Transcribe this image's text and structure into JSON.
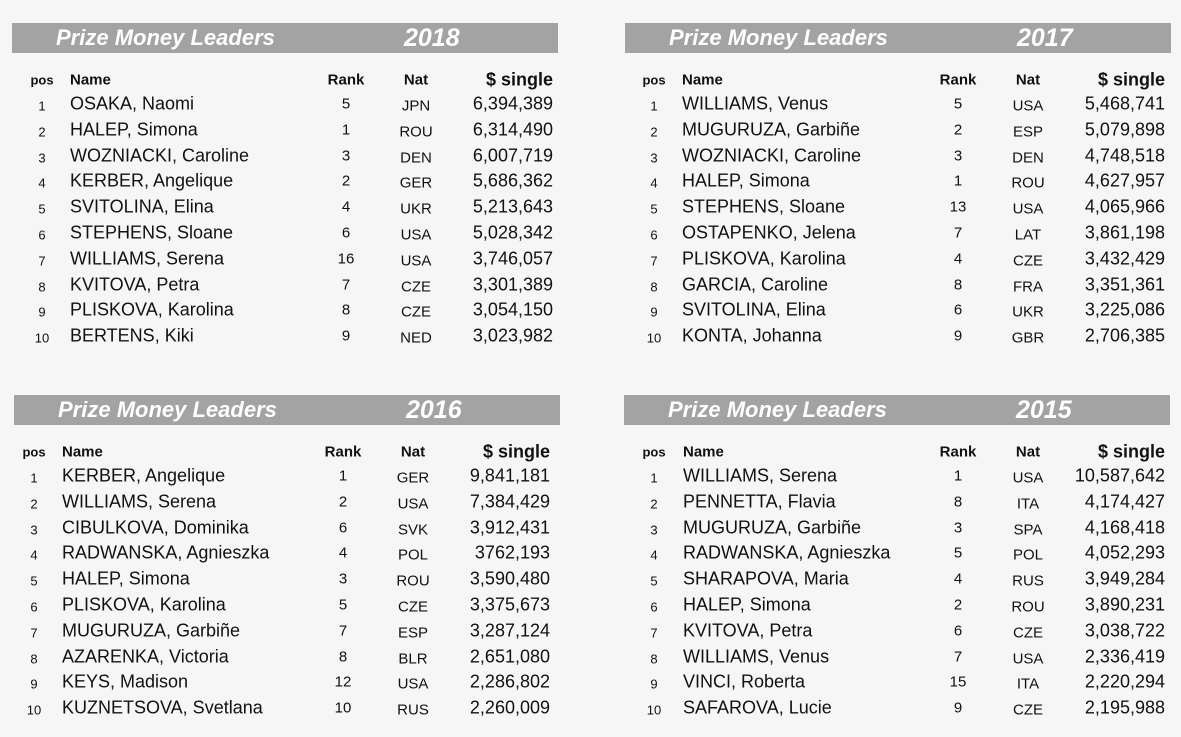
{
  "columns": {
    "pos": "pos",
    "name": "Name",
    "rank": "Rank",
    "nat": "Nat",
    "money": "$ single"
  },
  "panels": [
    {
      "title": "Prize Money Leaders",
      "year": "2018",
      "rows": [
        [
          "1",
          "OSAKA, Naomi",
          "5",
          "JPN",
          "6,394,389"
        ],
        [
          "2",
          "HALEP, Simona",
          "1",
          "ROU",
          "6,314,490"
        ],
        [
          "3",
          "WOZNIACKI, Caroline",
          "3",
          "DEN",
          "6,007,719"
        ],
        [
          "4",
          "KERBER, Angelique",
          "2",
          "GER",
          "5,686,362"
        ],
        [
          "5",
          "SVITOLINA, Elina",
          "4",
          "UKR",
          "5,213,643"
        ],
        [
          "6",
          "STEPHENS, Sloane",
          "6",
          "USA",
          "5,028,342"
        ],
        [
          "7",
          "WILLIAMS, Serena",
          "16",
          "USA",
          "3,746,057"
        ],
        [
          "8",
          "KVITOVA, Petra",
          "7",
          "CZE",
          "3,301,389"
        ],
        [
          "9",
          "PLISKOVA, Karolina",
          "8",
          "CZE",
          "3,054,150"
        ],
        [
          "10",
          "BERTENS, Kiki",
          "9",
          "NED",
          "3,023,982"
        ]
      ]
    },
    {
      "title": "Prize Money Leaders",
      "year": "2017",
      "rows": [
        [
          "1",
          "WILLIAMS, Venus",
          "5",
          "USA",
          "5,468,741"
        ],
        [
          "2",
          "MUGURUZA, Garbiñe",
          "2",
          "ESP",
          "5,079,898"
        ],
        [
          "3",
          "WOZNIACKI, Caroline",
          "3",
          "DEN",
          "4,748,518"
        ],
        [
          "4",
          "HALEP, Simona",
          "1",
          "ROU",
          "4,627,957"
        ],
        [
          "5",
          "STEPHENS, Sloane",
          "13",
          "USA",
          "4,065,966"
        ],
        [
          "6",
          "OSTAPENKO, Jelena",
          "7",
          "LAT",
          "3,861,198"
        ],
        [
          "7",
          "PLISKOVA, Karolina",
          "4",
          "CZE",
          "3,432,429"
        ],
        [
          "8",
          "GARCIA, Caroline",
          "8",
          "FRA",
          "3,351,361"
        ],
        [
          "9",
          "SVITOLINA, Elina",
          "6",
          "UKR",
          "3,225,086"
        ],
        [
          "10",
          "KONTA, Johanna",
          "9",
          "GBR",
          "2,706,385"
        ]
      ]
    },
    {
      "title": "Prize Money Leaders",
      "year": "2016",
      "rows": [
        [
          "1",
          "KERBER, Angelique",
          "1",
          "GER",
          "9,841,181"
        ],
        [
          "2",
          "WILLIAMS, Serena",
          "2",
          "USA",
          "7,384,429"
        ],
        [
          "3",
          "CIBULKOVA, Dominika",
          "6",
          "SVK",
          "3,912,431"
        ],
        [
          "4",
          "RADWANSKA, Agnieszka",
          "4",
          "POL",
          "3762,193"
        ],
        [
          "5",
          "HALEP, Simona",
          "3",
          "ROU",
          "3,590,480"
        ],
        [
          "6",
          "PLISKOVA, Karolina",
          "5",
          "CZE",
          "3,375,673"
        ],
        [
          "7",
          "MUGURUZA, Garbiñe",
          "7",
          "ESP",
          "3,287,124"
        ],
        [
          "8",
          "AZARENKA, Victoria",
          "8",
          "BLR",
          "2,651,080"
        ],
        [
          "9",
          "KEYS, Madison",
          "12",
          "USA",
          "2,286,802"
        ],
        [
          "10",
          "KUZNETSOVA, Svetlana",
          "10",
          "RUS",
          "2,260,009"
        ]
      ]
    },
    {
      "title": "Prize Money Leaders",
      "year": "2015",
      "rows": [
        [
          "1",
          "WILLIAMS, Serena",
          "1",
          "USA",
          "10,587,642"
        ],
        [
          "2",
          "PENNETTA, Flavia",
          "8",
          "ITA",
          "4,174,427"
        ],
        [
          "3",
          "MUGURUZA, Garbiñe",
          "3",
          "SPA",
          "4,168,418"
        ],
        [
          "4",
          "RADWANSKA, Agnieszka",
          "5",
          "POL",
          "4,052,293"
        ],
        [
          "5",
          "SHARAPOVA, Maria",
          "4",
          "RUS",
          "3,949,284"
        ],
        [
          "6",
          "HALEP, Simona",
          "2",
          "ROU",
          "3,890,231"
        ],
        [
          "7",
          "KVITOVA, Petra",
          "6",
          "CZE",
          "3,038,722"
        ],
        [
          "8",
          "WILLIAMS, Venus",
          "7",
          "USA",
          "2,336,419"
        ],
        [
          "9",
          "VINCI, Roberta",
          "15",
          "ITA",
          "2,220,294"
        ],
        [
          "10",
          "SAFAROVA, Lucie",
          "9",
          "CZE",
          "2,195,988"
        ]
      ]
    }
  ]
}
